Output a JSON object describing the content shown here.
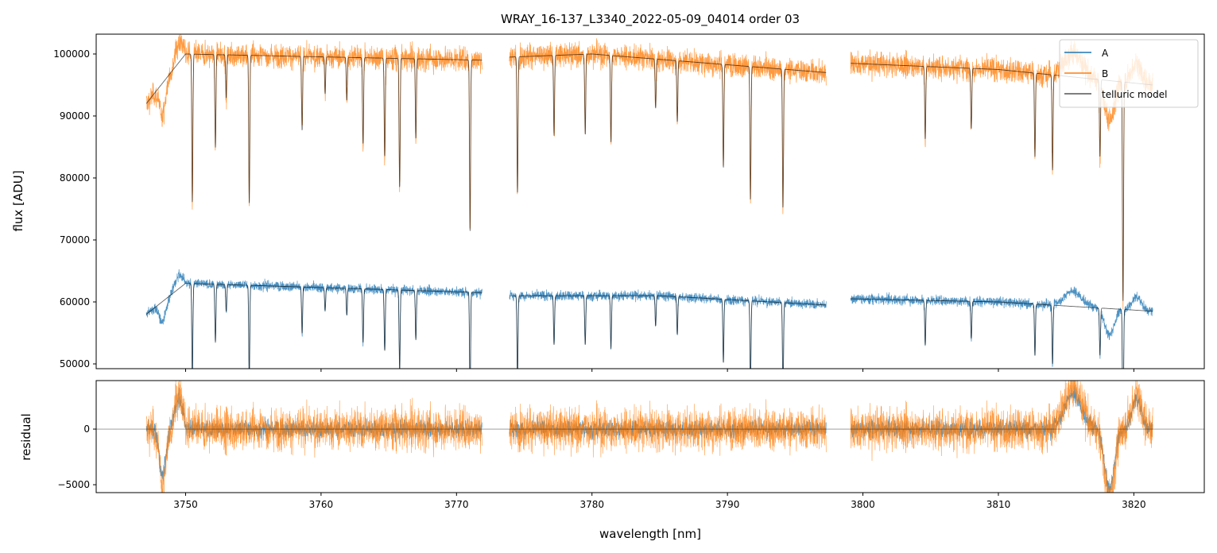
{
  "chart_data": {
    "type": "line",
    "title": "WRAY_16-137_L3340_2022-05-09_04014  order 03",
    "xlabel": "wavelength [nm]",
    "ylabel_top": "flux [ADU]",
    "ylabel_bottom": "residual",
    "xlim": [
      3743.4,
      3825.2
    ],
    "ylim_top": [
      49230,
      103200
    ],
    "ylim_bottom": [
      -5710,
      4360
    ],
    "xticks": [
      3750,
      3760,
      3770,
      3780,
      3790,
      3800,
      3810,
      3820
    ],
    "yticks_top": [
      50000,
      60000,
      70000,
      80000,
      90000,
      100000
    ],
    "yticks_bottom": [
      -5000,
      0
    ],
    "legend": {
      "placement": "top-right",
      "entries": [
        "A",
        "B",
        "telluric model"
      ]
    },
    "colors": {
      "A": "#1f77b4",
      "B": "#ff7f0e",
      "model": "#404040"
    },
    "segments": [
      [
        3747.1,
        3771.9
      ],
      [
        3773.9,
        3797.3
      ],
      [
        3799.1,
        3821.4
      ]
    ],
    "continuum_B": [
      [
        3747.1,
        92000
      ],
      [
        3750,
        100000
      ],
      [
        3771.9,
        99000
      ],
      [
        3773.9,
        99500
      ],
      [
        3780,
        100000
      ],
      [
        3797.3,
        97000
      ],
      [
        3799.1,
        98500
      ],
      [
        3810,
        97500
      ],
      [
        3821.4,
        95000
      ]
    ],
    "continuum_A": [
      [
        3747.1,
        58000
      ],
      [
        3750,
        63000
      ],
      [
        3771.9,
        61500
      ],
      [
        3773.9,
        61000
      ],
      [
        3785,
        61000
      ],
      [
        3797.3,
        59500
      ],
      [
        3799.1,
        60500
      ],
      [
        3810,
        60000
      ],
      [
        3821.4,
        58500
      ]
    ],
    "telluric_lines": [
      [
        3750.5,
        0.24
      ],
      [
        3752.2,
        0.15
      ],
      [
        3753.0,
        0.07
      ],
      [
        3754.7,
        0.24
      ],
      [
        3758.6,
        0.12
      ],
      [
        3760.3,
        0.06
      ],
      [
        3761.9,
        0.07
      ],
      [
        3763.1,
        0.14
      ],
      [
        3764.7,
        0.16
      ],
      [
        3765.8,
        0.21
      ],
      [
        3767.0,
        0.13
      ],
      [
        3771.0,
        0.28
      ],
      [
        3774.5,
        0.22
      ],
      [
        3777.2,
        0.13
      ],
      [
        3779.5,
        0.13
      ],
      [
        3781.4,
        0.14
      ],
      [
        3784.7,
        0.08
      ],
      [
        3786.3,
        0.1
      ],
      [
        3789.7,
        0.17
      ],
      [
        3791.7,
        0.22
      ],
      [
        3794.1,
        0.23
      ],
      [
        3804.6,
        0.12
      ],
      [
        3808.0,
        0.1
      ],
      [
        3812.7,
        0.14
      ],
      [
        3814.0,
        0.16
      ],
      [
        3817.5,
        0.13
      ],
      [
        3819.2,
        0.37
      ]
    ],
    "residual_noise_rms": 800
  }
}
